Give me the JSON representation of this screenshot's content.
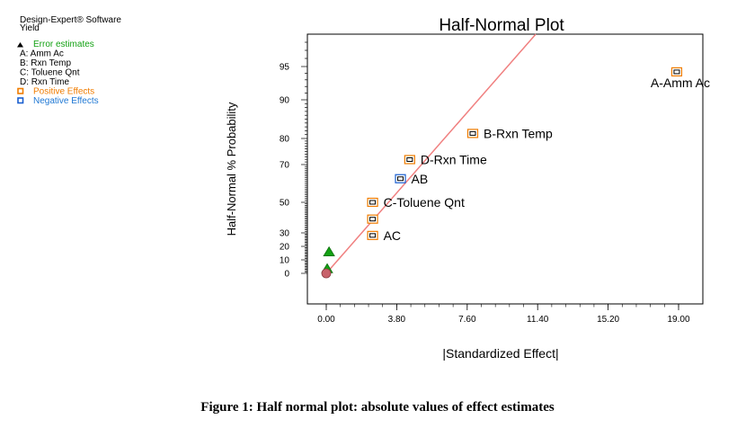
{
  "software_label": "Design-Expert® Software",
  "response_label": "Yield",
  "legend": [
    {
      "marker": "triangle",
      "text": "Error estimates",
      "color": "#13a113"
    },
    {
      "marker": "none",
      "text": "A: Amm Ac",
      "color": "#000000"
    },
    {
      "marker": "none",
      "text": "B: Rxn Temp",
      "color": "#000000"
    },
    {
      "marker": "none",
      "text": "C: Toluene Qnt",
      "color": "#000000"
    },
    {
      "marker": "none",
      "text": "D: Rxn Time",
      "color": "#000000"
    },
    {
      "marker": "square-orange",
      "text": "Positive Effects",
      "color": "#f07c00"
    },
    {
      "marker": "square-blue",
      "text": "Negative Effects",
      "color": "#1f78d4"
    }
  ],
  "caption": "Figure 1: Half normal plot: absolute values of effect estimates",
  "colors": {
    "positive": "#f07c00",
    "negative": "#1a5fd0",
    "error": "#13a113",
    "line": "#f08080",
    "origin": "#c8626b"
  },
  "chart_data": {
    "type": "scatter",
    "title": "Half-Normal Plot",
    "xlabel": "|Standardized Effect|",
    "ylabel": "Half-Normal % Probability",
    "xlim": [
      -1.0,
      20.0
    ],
    "ylim": [
      -8,
      98
    ],
    "x_ticks": [
      {
        "value": 0.0,
        "label": "0.00"
      },
      {
        "value": 3.8,
        "label": "3.80"
      },
      {
        "value": 7.6,
        "label": "7.60"
      },
      {
        "value": 11.4,
        "label": "11.40"
      },
      {
        "value": 15.2,
        "label": "15.20"
      },
      {
        "value": 19.0,
        "label": "19.00"
      }
    ],
    "y_ticks": [
      {
        "value": 0,
        "label": "0"
      },
      {
        "value": 10,
        "label": "10"
      },
      {
        "value": 20,
        "label": "20"
      },
      {
        "value": 30,
        "label": "30"
      },
      {
        "value": 50,
        "label": "50"
      },
      {
        "value": 70,
        "label": "70"
      },
      {
        "value": 80,
        "label": "80"
      },
      {
        "value": 90,
        "label": "90"
      },
      {
        "value": 95,
        "label": "95"
      }
    ],
    "grid": false,
    "legend_placement": "left",
    "reference_line": {
      "x": [
        0.0,
        11.3
      ],
      "y": [
        0,
        99
      ]
    },
    "series": [
      {
        "name": "Positive Effects",
        "marker": "square",
        "points": [
          {
            "x": 18.9,
            "y": 94.2,
            "label": "A-Amm Ac"
          },
          {
            "x": 7.9,
            "y": 81.3,
            "label": "B-Rxn Temp"
          },
          {
            "x": 4.5,
            "y": 71.9,
            "label": "D-Rxn Time"
          },
          {
            "x": 2.5,
            "y": 50.0,
            "label": "C-Toluene Qnt"
          },
          {
            "x": 2.5,
            "y": 39.0,
            "label": ""
          },
          {
            "x": 2.5,
            "y": 28.1,
            "label": "AC"
          }
        ]
      },
      {
        "name": "Negative Effects",
        "marker": "square",
        "points": [
          {
            "x": 4.0,
            "y": 62.5,
            "label": "AB"
          }
        ]
      },
      {
        "name": "Error estimates",
        "marker": "triangle",
        "points": [
          {
            "x": 0.15,
            "y": 15.6,
            "label": ""
          },
          {
            "x": 0.05,
            "y": 3.1,
            "label": ""
          }
        ]
      },
      {
        "name": "",
        "marker": "circle",
        "points": [
          {
            "x": 0.0,
            "y": 0.0,
            "label": ""
          }
        ]
      }
    ]
  }
}
